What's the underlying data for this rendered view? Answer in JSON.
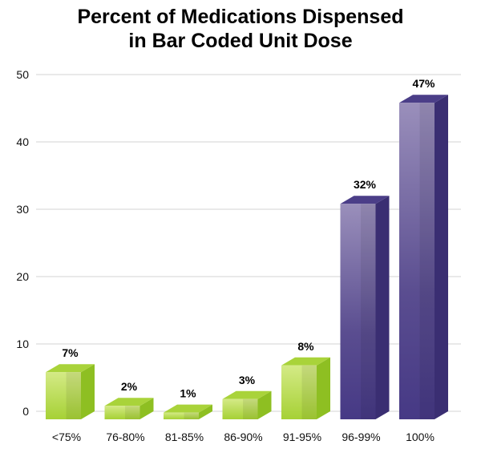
{
  "chart_data": {
    "type": "bar",
    "title_line1": "Percent of Medications Dispensed",
    "title_line2": "in Bar Coded Unit Dose",
    "xlabel": "",
    "ylabel": "",
    "ylim": [
      0,
      50
    ],
    "yticks": [
      0,
      10,
      20,
      30,
      40,
      50
    ],
    "grid": true,
    "categories": [
      "<75%",
      "76-80%",
      "81-85%",
      "86-90%",
      "91-95%",
      "96-99%",
      "100%"
    ],
    "values": [
      7,
      2,
      1,
      3,
      8,
      32,
      47
    ],
    "data_labels": [
      "7%",
      "2%",
      "1%",
      "3%",
      "8%",
      "32%",
      "47%"
    ],
    "bar_colors": [
      "#9fcc2e",
      "#9fcc2e",
      "#9fcc2e",
      "#9fcc2e",
      "#9fcc2e",
      "#4a3c80",
      "#4a3c80"
    ],
    "colors": {
      "green": "#9fcc2e",
      "purple": "#4a3c80",
      "grid": "#e2e2e2"
    }
  }
}
